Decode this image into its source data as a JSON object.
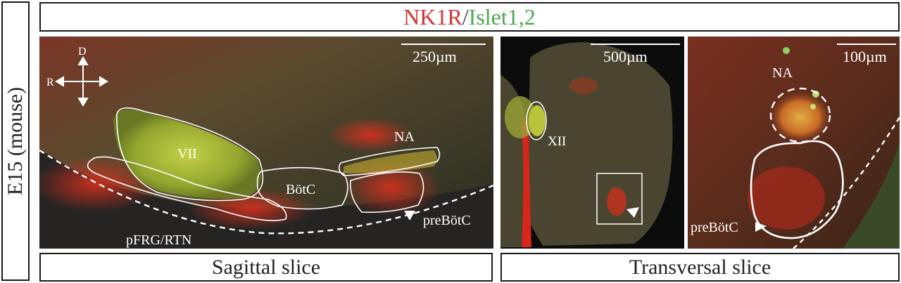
{
  "side_label": "E15 (mouse)",
  "title": {
    "marker1": "NK1R",
    "separator": "/",
    "marker2": "Islet1,2"
  },
  "panels": {
    "sagittal": {
      "scale": "250µm",
      "axis": {
        "dorsal": "D",
        "rostral": "R"
      },
      "regions": {
        "vii": "VII",
        "botc": "BötC",
        "na": "NA",
        "prebotc": "preBötC",
        "pfrg": "pFRG/RTN"
      }
    },
    "transversal": {
      "scale": "500µm",
      "regions": {
        "xii": "XII"
      }
    },
    "zoom": {
      "scale": "100µm",
      "regions": {
        "na": "NA",
        "prebotc": "preBötC"
      }
    }
  },
  "footer": {
    "left": "Sagittal slice",
    "right": "Transversal slice"
  },
  "colors": {
    "nk1r": "#d5332f",
    "islet": "#4aa84e",
    "frame": "#1a1a1a"
  }
}
